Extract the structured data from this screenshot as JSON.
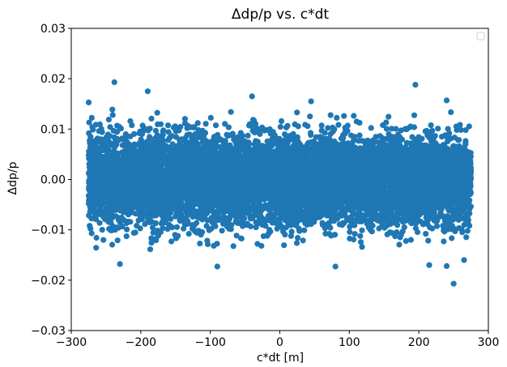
{
  "chart_data": {
    "type": "scatter",
    "title": "Δdp/p vs. c*dt",
    "xlabel": "c*dt [m]",
    "ylabel": "Δdp/p",
    "xlim": [
      -300,
      300
    ],
    "ylim": [
      -0.03,
      0.03
    ],
    "x_ticks": [
      -300,
      -200,
      -100,
      0,
      100,
      200,
      300
    ],
    "x_tick_labels": [
      "−300",
      "−200",
      "−100",
      "0",
      "100",
      "200",
      "300"
    ],
    "y_ticks": [
      -0.03,
      -0.02,
      -0.01,
      0.0,
      0.01,
      0.02,
      0.03
    ],
    "y_tick_labels": [
      "−0.03",
      "−0.02",
      "−0.01",
      "0.00",
      "0.01",
      "0.02",
      "0.03"
    ],
    "grid": false,
    "legend": "top-right (empty)",
    "series": [
      {
        "color": "#1f77b4",
        "x_range": [
          -275,
          275
        ],
        "y_core_range": [
          -0.0055,
          0.0055
        ],
        "y_std": 0.0042,
        "approx_count": 9000,
        "extreme_points": [
          {
            "x": -238,
            "y": 0.0193
          },
          {
            "x": -190,
            "y": 0.0175
          },
          {
            "x": -275,
            "y": 0.0153
          },
          {
            "x": -40,
            "y": 0.0165
          },
          {
            "x": 45,
            "y": 0.0155
          },
          {
            "x": 195,
            "y": 0.0188
          },
          {
            "x": 240,
            "y": 0.0157
          },
          {
            "x": -90,
            "y": -0.0173
          },
          {
            "x": -230,
            "y": -0.0168
          },
          {
            "x": 80,
            "y": -0.0173
          },
          {
            "x": 215,
            "y": -0.017
          },
          {
            "x": 240,
            "y": -0.0172
          },
          {
            "x": 250,
            "y": -0.0207
          },
          {
            "x": 265,
            "y": -0.016
          }
        ]
      }
    ]
  }
}
